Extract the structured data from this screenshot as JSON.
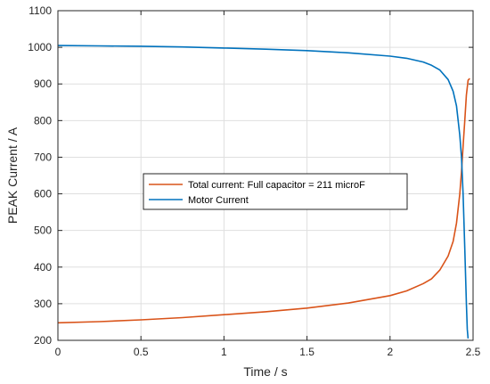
{
  "chart_data": {
    "type": "line",
    "xlabel": "Time / s",
    "ylabel": "PEAK Current / A",
    "xlim": [
      0,
      2.5
    ],
    "ylim": [
      200,
      1100
    ],
    "xticks": [
      0,
      0.5,
      1,
      1.5,
      2,
      2.5
    ],
    "yticks": [
      200,
      300,
      400,
      500,
      600,
      700,
      800,
      900,
      1000,
      1100
    ],
    "xtick_labels": [
      "0",
      "0.5",
      "1",
      "1.5",
      "2",
      "2.5"
    ],
    "ytick_labels": [
      "200",
      "300",
      "400",
      "500",
      "600",
      "700",
      "800",
      "900",
      "1000",
      "1100"
    ],
    "grid": true,
    "legend_position": "center-left",
    "series": [
      {
        "name": "Total current: Full capacitor = 211 microF",
        "color": "#D95319",
        "x": [
          0,
          0.25,
          0.5,
          0.75,
          1.0,
          1.25,
          1.5,
          1.75,
          2.0,
          2.1,
          2.2,
          2.25,
          2.3,
          2.35,
          2.38,
          2.4,
          2.42,
          2.43,
          2.44,
          2.45,
          2.46,
          2.47,
          2.48
        ],
        "y": [
          248,
          251,
          256,
          262,
          270,
          278,
          288,
          302,
          322,
          335,
          355,
          368,
          392,
          430,
          470,
          520,
          600,
          660,
          730,
          800,
          870,
          910,
          915
        ]
      },
      {
        "name": "Motor Current",
        "color": "#0072BD",
        "x": [
          0,
          0.25,
          0.5,
          0.75,
          1.0,
          1.25,
          1.5,
          1.75,
          2.0,
          2.1,
          2.2,
          2.25,
          2.3,
          2.35,
          2.38,
          2.4,
          2.42,
          2.43,
          2.44,
          2.45,
          2.46,
          2.465,
          2.47
        ],
        "y": [
          1005,
          1004,
          1003,
          1001,
          998,
          995,
          991,
          985,
          976,
          970,
          960,
          951,
          938,
          912,
          880,
          840,
          760,
          700,
          600,
          450,
          300,
          230,
          205
        ]
      }
    ]
  }
}
